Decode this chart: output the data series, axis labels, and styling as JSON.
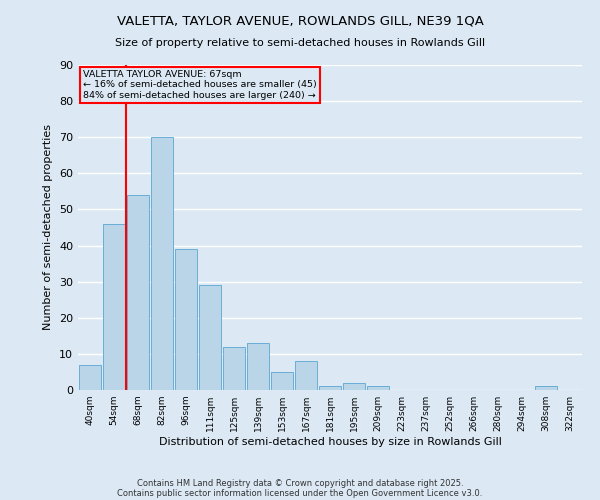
{
  "title_line1": "VALETTA, TAYLOR AVENUE, ROWLANDS GILL, NE39 1QA",
  "title_line2": "Size of property relative to semi-detached houses in Rowlands Gill",
  "xlabel": "Distribution of semi-detached houses by size in Rowlands Gill",
  "ylabel": "Number of semi-detached properties",
  "footer_line1": "Contains HM Land Registry data © Crown copyright and database right 2025.",
  "footer_line2": "Contains public sector information licensed under the Open Government Licence v3.0.",
  "bar_labels": [
    "40sqm",
    "54sqm",
    "68sqm",
    "82sqm",
    "96sqm",
    "111sqm",
    "125sqm",
    "139sqm",
    "153sqm",
    "167sqm",
    "181sqm",
    "195sqm",
    "209sqm",
    "223sqm",
    "237sqm",
    "252sqm",
    "266sqm",
    "280sqm",
    "294sqm",
    "308sqm",
    "322sqm"
  ],
  "bar_values": [
    7,
    46,
    54,
    70,
    39,
    29,
    12,
    13,
    5,
    8,
    1,
    2,
    1,
    0,
    0,
    0,
    0,
    0,
    0,
    1,
    0
  ],
  "bar_color": "#bad4e8",
  "bar_edge_color": "#6aaed6",
  "background_color": "#dce9f5",
  "grid_color": "#ffffff",
  "annotation_text_line1": "VALETTA TAYLOR AVENUE: 67sqm",
  "annotation_text_line2": "← 16% of semi-detached houses are smaller (45)",
  "annotation_text_line3": "84% of semi-detached houses are larger (240) →",
  "ylim": [
    0,
    90
  ],
  "yticks": [
    0,
    10,
    20,
    30,
    40,
    50,
    60,
    70,
    80,
    90
  ],
  "red_line_x": 1.5
}
